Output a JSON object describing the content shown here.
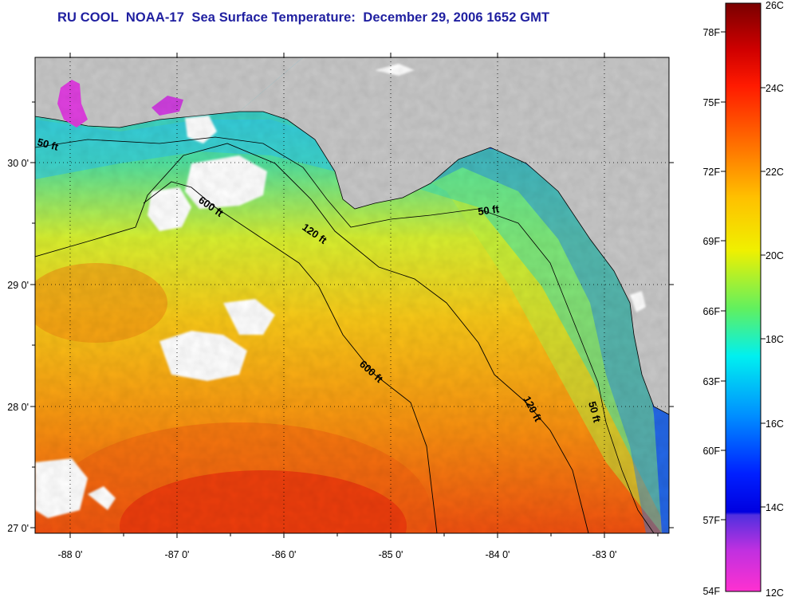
{
  "title": "RU COOL  NOAA-17  Sea Surface Temperature:  December 29, 2006 1652 GMT",
  "longitude_labels": [
    "-88 0'",
    "-87 0'",
    "-86 0'",
    "-85 0'",
    "-84 0'",
    "-83 0'"
  ],
  "latitude_labels": [
    "30 0'",
    "29 0'",
    "28 0'",
    "27 0'"
  ],
  "contour_labels": {
    "fifty_west": "50 ft",
    "fifty_north": "50 ft",
    "fifty_south": "50 ft",
    "onetwenty_north": "120 ft",
    "onetwenty_south": "120 ft",
    "sixhundred_north": "600 ft",
    "sixhundred_south": "600 ft"
  },
  "colorbar": {
    "fahrenheit_labels": [
      "78F",
      "75F",
      "72F",
      "69F",
      "66F",
      "63F",
      "60F",
      "57F",
      "54F"
    ],
    "celsius_labels": [
      "26C",
      "24C",
      "22C",
      "20C",
      "18C",
      "16C",
      "14C",
      "12C"
    ]
  },
  "colors": {
    "title": "#1f1fa0",
    "land": "#c8c8c8",
    "cloud": "#ffffff",
    "warm": "#e81c0c",
    "cold": "#1a3cf0"
  }
}
